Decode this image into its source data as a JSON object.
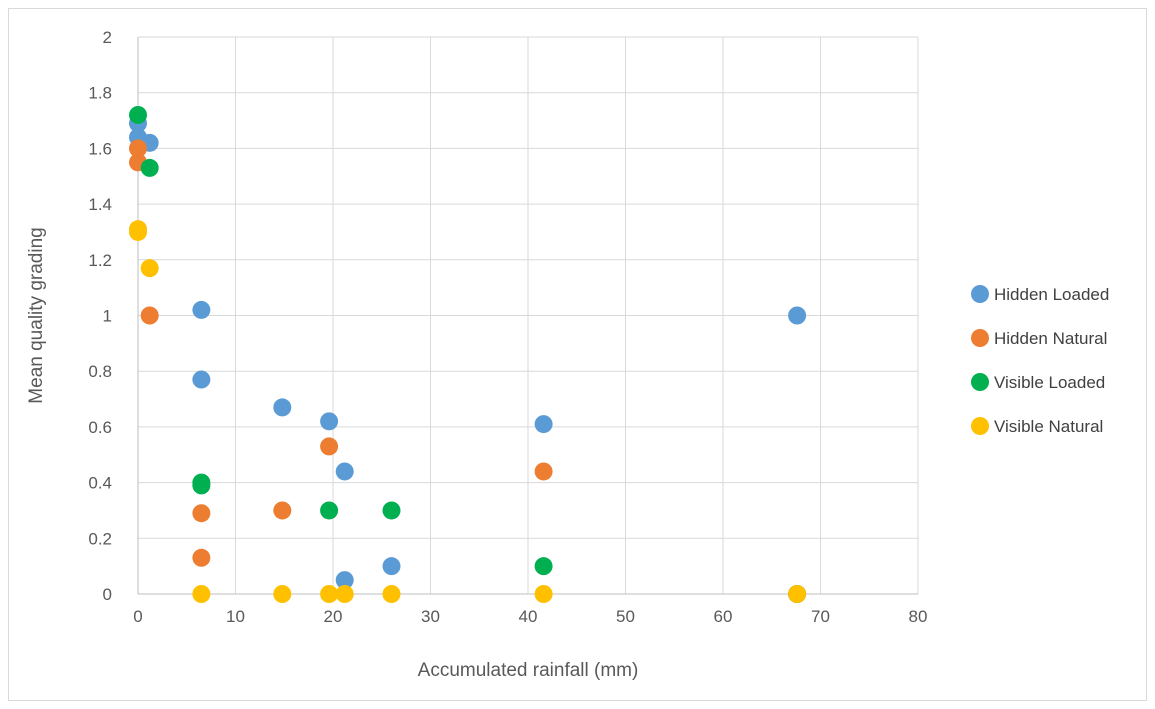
{
  "chart_data": {
    "type": "scatter",
    "title": "",
    "xlabel": "Accumulated rainfall (mm)",
    "ylabel": "Mean quality grading",
    "xlim": [
      0,
      80
    ],
    "ylim": [
      0,
      2
    ],
    "x_ticks": [
      "0",
      "10",
      "20",
      "30",
      "40",
      "50",
      "60",
      "70",
      "80"
    ],
    "y_ticks": [
      "0",
      "0.2",
      "0.4",
      "0.6",
      "0.8",
      "1",
      "1.2",
      "1.4",
      "1.6",
      "1.8",
      "2"
    ],
    "grid": true,
    "legend_position": "right",
    "series": [
      {
        "name": "Hidden Loaded",
        "color": "#5B9BD5",
        "points": [
          [
            0,
            1.69
          ],
          [
            0,
            1.64
          ],
          [
            1.2,
            1.62
          ],
          [
            6.5,
            1.02
          ],
          [
            6.5,
            0.77
          ],
          [
            14.8,
            0.67
          ],
          [
            19.6,
            0.62
          ],
          [
            21.2,
            0.44
          ],
          [
            21.2,
            0.05
          ],
          [
            26,
            0.1
          ],
          [
            41.6,
            0.61
          ],
          [
            67.6,
            1.0
          ]
        ]
      },
      {
        "name": "Hidden Natural",
        "color": "#ED7D31",
        "points": [
          [
            0,
            1.6
          ],
          [
            0,
            1.55
          ],
          [
            1.2,
            1.0
          ],
          [
            6.5,
            0.29
          ],
          [
            6.5,
            0.13
          ],
          [
            14.8,
            0.3
          ],
          [
            19.6,
            0.53
          ],
          [
            41.6,
            0.44
          ],
          [
            67.6,
            0
          ]
        ]
      },
      {
        "name": "Visible Loaded",
        "color": "#00B050",
        "points": [
          [
            0,
            1.72
          ],
          [
            1.2,
            1.53
          ],
          [
            6.5,
            0.4
          ],
          [
            6.5,
            0.39
          ],
          [
            19.6,
            0.3
          ],
          [
            26,
            0.3
          ],
          [
            41.6,
            0.1
          ],
          [
            67.6,
            0
          ]
        ]
      },
      {
        "name": "Visible Natural",
        "color": "#FFC000",
        "points": [
          [
            0,
            1.31
          ],
          [
            0,
            1.3
          ],
          [
            1.2,
            1.17
          ],
          [
            6.5,
            0
          ],
          [
            14.8,
            0
          ],
          [
            19.6,
            0
          ],
          [
            21.2,
            0
          ],
          [
            26,
            0
          ],
          [
            41.6,
            0
          ],
          [
            67.6,
            0
          ]
        ]
      }
    ]
  }
}
